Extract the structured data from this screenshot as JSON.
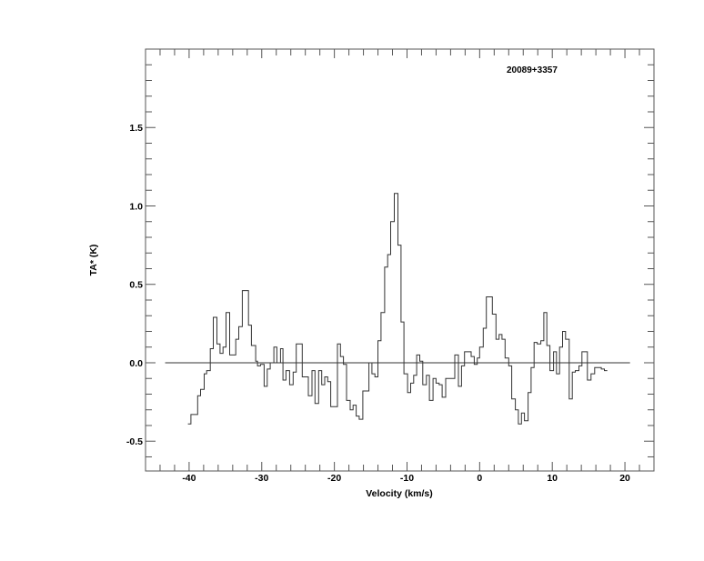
{
  "chart_data": {
    "type": "line",
    "style": "histogram-step",
    "title": "20089+3357",
    "xlabel": "Velocity (km/s)",
    "ylabel": "TA* (K)",
    "xlim": [
      -46,
      24
    ],
    "ylim": [
      -0.69,
      2.0
    ],
    "x_major_ticks": [
      -40,
      -30,
      -20,
      -10,
      0,
      10,
      20
    ],
    "x_tick_labels": [
      "-40",
      "-30",
      "-20",
      "-10",
      "0",
      "10",
      "20"
    ],
    "x_minor_step": 2,
    "y_major_ticks": [
      -0.5,
      0.0,
      0.5,
      1.0,
      1.5
    ],
    "y_tick_labels": [
      "-0.5",
      "0.0",
      "0.5",
      "1.0",
      "1.5"
    ],
    "y_minor_step": 0.1,
    "grid": false,
    "baseline": {
      "value": 0.0,
      "x_range": [
        -43.3,
        20.7
      ]
    },
    "line_color": "#000000",
    "spectrum": {
      "channel_start_velocity": [
        -40.17,
        -39.75,
        -38.83,
        -38.42,
        -37.92,
        -37.58,
        -37.08,
        -36.67,
        -36.17,
        -35.75,
        -35.33,
        -34.92,
        -34.42,
        -33.58,
        -33.17,
        -32.67,
        -31.83,
        -31.42,
        -30.83,
        -30.58,
        -30.17,
        -29.67,
        -29.25,
        -28.83,
        -28.33,
        -27.92,
        -27.42,
        -27.08,
        -26.67,
        -26.17,
        -25.67,
        -25.25,
        -24.42,
        -23.58,
        -23.08,
        -22.67,
        -22.17,
        -21.75,
        -21.33,
        -20.92,
        -20.5,
        -19.58,
        -19.17,
        -18.75,
        -18.33,
        -17.83,
        -17.42,
        -17.0,
        -16.58,
        -16.08,
        -15.25,
        -14.83,
        -14.42,
        -14.0,
        -13.58,
        -13.08,
        -12.67,
        -12.25,
        -11.75,
        -11.25,
        -10.83,
        -10.42,
        -9.92,
        -9.5,
        -9.08,
        -8.67,
        -8.25,
        -7.83,
        -7.33,
        -6.92,
        -6.42,
        -6.0,
        -5.58,
        -5.17,
        -4.67,
        -3.42,
        -2.92,
        -2.5,
        -2.08,
        -1.17,
        -0.75,
        -0.33,
        0.0,
        0.5,
        0.92,
        1.75,
        2.25,
        2.67,
        3.08,
        3.5,
        4.0,
        4.42,
        4.92,
        5.33,
        5.75,
        6.17,
        6.67,
        7.08,
        7.5,
        7.92,
        8.42,
        8.83,
        9.25,
        9.67,
        10.17,
        10.58,
        11.0,
        11.42,
        11.83,
        12.33,
        12.75,
        13.17,
        13.67,
        14.08,
        14.83,
        15.33,
        15.83,
        16.75,
        17.17
      ],
      "end_velocity": 17.58,
      "ta": [
        -0.39,
        -0.33,
        -0.21,
        -0.17,
        -0.07,
        -0.05,
        0.09,
        0.29,
        0.12,
        0.06,
        0.1,
        0.32,
        0.05,
        0.15,
        0.23,
        0.46,
        0.24,
        0.11,
        0.01,
        -0.02,
        -0.01,
        -0.15,
        -0.04,
        0.0,
        0.1,
        0.0,
        0.09,
        -0.11,
        -0.05,
        -0.14,
        -0.06,
        0.12,
        -0.09,
        -0.21,
        -0.05,
        -0.26,
        -0.05,
        -0.14,
        -0.09,
        -0.12,
        -0.28,
        0.12,
        0.04,
        -0.01,
        -0.24,
        -0.3,
        -0.27,
        -0.34,
        -0.36,
        -0.18,
        0.0,
        -0.07,
        -0.09,
        0.14,
        0.32,
        0.61,
        0.69,
        0.9,
        1.08,
        0.75,
        0.26,
        -0.07,
        -0.19,
        -0.13,
        -0.08,
        0.05,
        0.01,
        -0.14,
        -0.08,
        -0.24,
        -0.1,
        -0.13,
        -0.14,
        -0.22,
        -0.1,
        0.05,
        -0.15,
        -0.02,
        0.07,
        0.04,
        -0.01,
        0.03,
        0.1,
        0.22,
        0.42,
        0.31,
        0.15,
        0.18,
        0.15,
        0.03,
        -0.02,
        -0.23,
        -0.3,
        -0.39,
        -0.32,
        -0.37,
        -0.19,
        -0.03,
        0.13,
        0.12,
        0.14,
        0.32,
        0.11,
        -0.05,
        0.07,
        -0.07,
        0.1,
        0.2,
        0.15,
        -0.23,
        -0.06,
        -0.05,
        -0.02,
        0.07,
        -0.11,
        -0.07,
        -0.03,
        -0.04,
        -0.05
      ]
    }
  }
}
